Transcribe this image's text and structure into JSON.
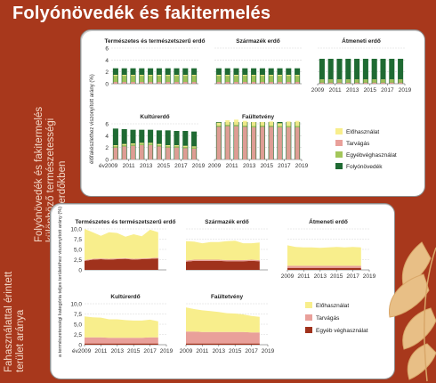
{
  "title": "Folyónövedék és fakitermelés",
  "side_label_top": [
    "Folyónövedék és fakitermelés",
    "különböző természetességi",
    "állapotú erdőkben"
  ],
  "side_label_bottom": [
    "Fahasználattal érintett",
    "terület aránya"
  ],
  "colors": {
    "background": "#a8381c",
    "elohasznalat": "#f8ee8c",
    "tarvagas": "#e9a09a",
    "egyeb_top": "#a3c65a",
    "folyonovedek": "#1f6a33",
    "egyeb_bottom": "#a0321c"
  },
  "chart_data": [
    {
      "type": "bar",
      "ylabel": "élőfakészlethez viszonyított arány (%)",
      "ylim": [
        0,
        6
      ],
      "yticks": [
        "0",
        "2",
        "4",
        "6"
      ],
      "x_prefix": "év",
      "x_ticks": [
        "2009",
        "2011",
        "2013",
        "2015",
        "2017",
        "2019"
      ],
      "years": [
        2009,
        2010,
        2011,
        2012,
        2013,
        2014,
        2015,
        2016,
        2017,
        2018
      ],
      "legend": [
        {
          "name": "Előhasználat",
          "color": "#f8ee8c"
        },
        {
          "name": "Tarvágás",
          "color": "#e9a09a"
        },
        {
          "name": "Egyébvéghasználat",
          "color": "#a3c65a"
        },
        {
          "name": "Folyónövedék",
          "color": "#1f6a33"
        }
      ],
      "panels": [
        {
          "title": "Természetes és természetszerű erdő",
          "folyonovedek": [
            2.6,
            2.6,
            2.6,
            2.6,
            2.6,
            2.6,
            2.6,
            2.6,
            2.6,
            2.6
          ],
          "elohasznalat": [
            0.2,
            0.2,
            0.2,
            0.2,
            0.2,
            0.2,
            0.2,
            0.2,
            0.2,
            0.2
          ],
          "tarvagas": [
            0.3,
            0.3,
            0.3,
            0.3,
            0.3,
            0.3,
            0.3,
            0.3,
            0.3,
            0.3
          ],
          "egyeb": [
            1.0,
            1.0,
            1.0,
            1.0,
            1.0,
            1.0,
            1.0,
            1.0,
            1.0,
            1.0
          ]
        },
        {
          "title": "Származék erdő",
          "folyonovedek": [
            2.6,
            2.6,
            2.6,
            2.6,
            2.6,
            2.6,
            2.6,
            2.6,
            2.6,
            2.6
          ],
          "elohasznalat": [
            0.2,
            0.2,
            0.2,
            0.2,
            0.2,
            0.2,
            0.2,
            0.2,
            0.2,
            0.2
          ],
          "tarvagas": [
            0.3,
            0.3,
            0.3,
            0.3,
            0.3,
            0.3,
            0.3,
            0.3,
            0.3,
            0.3
          ],
          "egyeb": [
            1.0,
            1.0,
            1.0,
            1.0,
            1.0,
            1.0,
            1.0,
            1.0,
            1.0,
            1.0
          ]
        },
        {
          "title": "Átmeneti erdő",
          "folyonovedek": [
            4.2,
            4.2,
            4.2,
            4.2,
            4.2,
            4.2,
            4.2,
            4.2,
            4.2,
            4.2
          ],
          "elohasznalat": [
            0.1,
            0.1,
            0.1,
            0.1,
            0.1,
            0.1,
            0.1,
            0.1,
            0.1,
            0.1
          ],
          "tarvagas": [
            0.2,
            0.2,
            0.2,
            0.2,
            0.2,
            0.2,
            0.2,
            0.2,
            0.2,
            0.2
          ],
          "egyeb": [
            0.4,
            0.4,
            0.4,
            0.4,
            0.4,
            0.4,
            0.4,
            0.4,
            0.4,
            0.4
          ]
        },
        {
          "title": "Kultúrerdő",
          "folyonovedek": [
            5.2,
            5.1,
            5.0,
            5.0,
            5.0,
            4.9,
            4.9,
            4.8,
            4.8,
            4.7
          ],
          "elohasznalat": [
            0.2,
            0.2,
            0.2,
            0.2,
            0.2,
            0.2,
            0.2,
            0.2,
            0.2,
            0.2
          ],
          "tarvagas": [
            2.0,
            2.2,
            2.3,
            2.4,
            2.4,
            2.2,
            2.0,
            2.0,
            1.9,
            1.8
          ],
          "egyeb": [
            0.2,
            0.2,
            0.2,
            0.2,
            0.2,
            0.2,
            0.2,
            0.2,
            0.2,
            0.2
          ]
        },
        {
          "title": "Faültetvény",
          "folyonovedek": [
            6.3,
            6.3,
            6.3,
            6.3,
            6.3,
            6.3,
            6.3,
            6.3,
            6.3,
            6.3
          ],
          "elohasznalat": [
            0.5,
            0.8,
            0.9,
            0.8,
            0.7,
            0.6,
            0.7,
            0.5,
            0.8,
            0.9
          ],
          "tarvagas": [
            5.5,
            5.6,
            5.6,
            5.5,
            5.4,
            5.5,
            5.5,
            5.4,
            5.4,
            5.4
          ],
          "egyeb": [
            0.2,
            0.2,
            0.2,
            0.2,
            0.2,
            0.2,
            0.2,
            0.2,
            0.2,
            0.2
          ]
        }
      ]
    },
    {
      "type": "area",
      "ylabel": "a természetességi kategória teljes területéhez viszonyított arány (%)",
      "ylim": [
        0,
        10
      ],
      "yticks": [
        "0",
        "2,5",
        "5,0",
        "7,5",
        "10,0"
      ],
      "x_prefix": "év",
      "x_ticks": [
        "2009",
        "2011",
        "2013",
        "2015",
        "2017",
        "2019"
      ],
      "years": [
        2009,
        2010,
        2011,
        2012,
        2013,
        2014,
        2015,
        2016,
        2017,
        2018
      ],
      "legend": [
        {
          "name": "Előhasználat",
          "color": "#f8ee8c"
        },
        {
          "name": "Tarvágás",
          "color": "#e9a09a"
        },
        {
          "name": "Egyéb véghasználat",
          "color": "#a0321c"
        }
      ],
      "panels": [
        {
          "title": "Természetes és természetszerű erdő",
          "egyeb": [
            2.2,
            2.5,
            2.6,
            2.5,
            2.6,
            2.7,
            2.5,
            2.6,
            2.7,
            2.8
          ],
          "tarvagas": [
            0.2,
            0.2,
            0.2,
            0.2,
            0.2,
            0.2,
            0.2,
            0.2,
            0.2,
            0.2
          ],
          "elohasznalat": [
            7.6,
            6.5,
            5.5,
            6.5,
            6.2,
            5.2,
            6.0,
            5.4,
            6.9,
            6.2
          ]
        },
        {
          "title": "Származék erdő",
          "egyeb": [
            2.0,
            2.2,
            2.2,
            2.2,
            2.2,
            2.1,
            2.1,
            2.1,
            2.2,
            2.1
          ],
          "tarvagas": [
            0.3,
            0.3,
            0.3,
            0.3,
            0.3,
            0.3,
            0.3,
            0.3,
            0.3,
            0.3
          ],
          "elohasznalat": [
            4.7,
            4.4,
            4.0,
            4.3,
            4.3,
            4.6,
            4.7,
            4.1,
            4.0,
            4.3
          ]
        },
        {
          "title": "Átmeneti erdő",
          "egyeb": [
            0.5,
            0.5,
            0.5,
            0.5,
            0.5,
            0.5,
            0.5,
            0.5,
            0.5,
            0.5
          ],
          "tarvagas": [
            0.5,
            0.5,
            0.5,
            0.5,
            0.5,
            0.5,
            0.5,
            0.5,
            0.5,
            0.5
          ],
          "elohasznalat": [
            5.0,
            4.6,
            4.5,
            4.5,
            4.4,
            4.5,
            4.6,
            4.5,
            4.6,
            4.5
          ]
        },
        {
          "title": "Kultúrerdő",
          "egyeb": [
            0.3,
            0.3,
            0.3,
            0.3,
            0.3,
            0.3,
            0.3,
            0.3,
            0.3,
            0.3
          ],
          "tarvagas": [
            1.5,
            1.5,
            1.5,
            1.4,
            1.4,
            1.4,
            1.4,
            1.4,
            1.5,
            1.5
          ],
          "elohasznalat": [
            5.1,
            4.9,
            4.8,
            4.5,
            4.5,
            4.3,
            4.2,
            4.2,
            4.3,
            3.9
          ]
        },
        {
          "title": "Faültetvény",
          "egyeb": [
            0.3,
            0.3,
            0.3,
            0.3,
            0.3,
            0.3,
            0.3,
            0.3,
            0.3,
            0.3
          ],
          "tarvagas": [
            2.9,
            2.9,
            2.8,
            2.8,
            2.8,
            2.8,
            2.8,
            2.8,
            2.7,
            2.7
          ],
          "elohasznalat": [
            5.9,
            5.5,
            5.3,
            5.1,
            4.9,
            4.6,
            4.5,
            4.3,
            4.0,
            3.8
          ]
        }
      ]
    }
  ]
}
